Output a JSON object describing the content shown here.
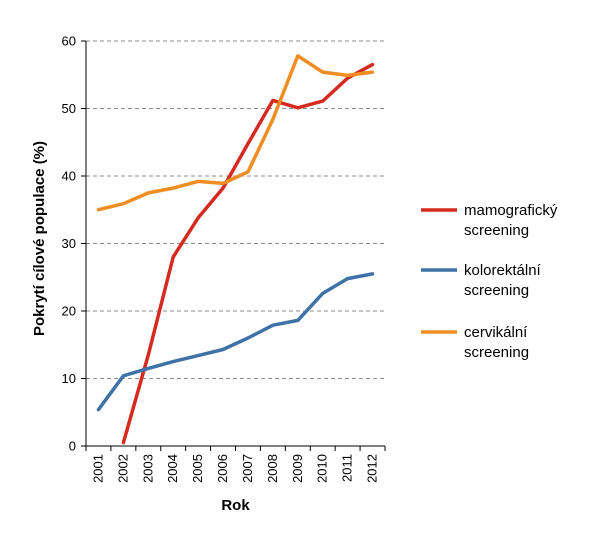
{
  "chart_data": {
    "type": "line",
    "xlabel": "Rok",
    "ylabel": "Pokrytí cílové populace (%)",
    "x": [
      "2001",
      "2002",
      "2003",
      "2004",
      "2005",
      "2006",
      "2007",
      "2008",
      "2009",
      "2010",
      "2011",
      "2012"
    ],
    "ylim": [
      0,
      60
    ],
    "yticks": [
      0,
      10,
      20,
      30,
      40,
      50,
      60
    ],
    "grid": "horizontal dashed",
    "legend_position": "right",
    "series": [
      {
        "name": "mamografický screening",
        "legend_lines": [
          "mamografický",
          "screening"
        ],
        "color": "#d42a1f",
        "values": [
          null,
          0.5,
          13.5,
          28,
          33.8,
          38.2,
          44.8,
          51.2,
          50.1,
          51.1,
          54.5,
          56.5
        ]
      },
      {
        "name": "kolorektální screening",
        "legend_lines": [
          "kolorektální",
          "screening"
        ],
        "color": "#3f72a6",
        "values": [
          5.4,
          10.4,
          11.5,
          12.5,
          13.4,
          14.3,
          16.0,
          17.9,
          18.6,
          22.6,
          24.8,
          25.5
        ]
      },
      {
        "name": "cervikální screening",
        "legend_lines": [
          "cervikální",
          "screening"
        ],
        "color": "#ef8d22",
        "values": [
          35.0,
          35.9,
          37.5,
          38.2,
          39.2,
          38.9,
          40.6,
          48.4,
          57.8,
          55.4,
          54.9,
          55.4
        ]
      }
    ]
  }
}
